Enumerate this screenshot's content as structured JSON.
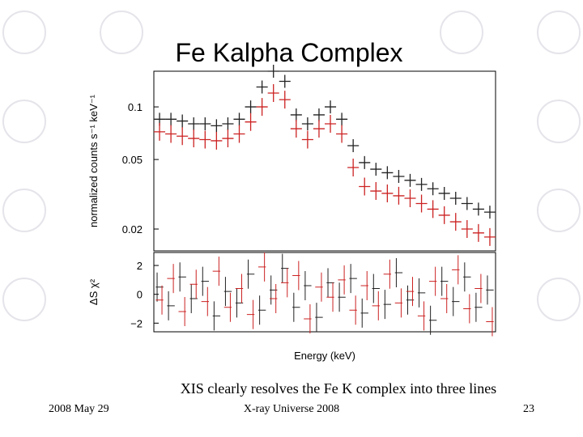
{
  "slide": {
    "title": "Fe Kalpha Complex",
    "caption": "XIS clearly resolves the Fe K complex into three lines",
    "footer_left": "2008 May 29",
    "footer_center": "X-ray Universe 2008",
    "footer_right": "23"
  },
  "chart_data": [
    {
      "type": "step",
      "ylabel": "normalized counts s⁻¹ keV⁻¹",
      "ylog": true,
      "categories": [
        null,
        null,
        null,
        null,
        null,
        null,
        null,
        null,
        null,
        null,
        null,
        null,
        null,
        null,
        null,
        null,
        null,
        null,
        null,
        null,
        null,
        null,
        null,
        null,
        null,
        null,
        null,
        null,
        null,
        null
      ],
      "ylim": [
        0.015,
        0.16
      ],
      "yticks": [
        0.02,
        0.05,
        0.1
      ],
      "series": [
        {
          "color": "#222222",
          "values": [
            0.085,
            0.085,
            0.083,
            0.08,
            0.08,
            0.078,
            0.08,
            0.085,
            0.1,
            0.13,
            0.16,
            0.14,
            0.09,
            0.08,
            0.09,
            0.1,
            0.085,
            0.06,
            0.048,
            0.044,
            0.042,
            0.04,
            0.038,
            0.036,
            0.034,
            0.032,
            0.03,
            0.028,
            0.026,
            0.025
          ]
        },
        {
          "color": "#cc2222",
          "values": [
            0.072,
            0.07,
            0.068,
            0.066,
            0.065,
            0.064,
            0.066,
            0.07,
            0.082,
            0.1,
            0.12,
            0.11,
            0.075,
            0.065,
            0.075,
            0.08,
            0.07,
            0.045,
            0.035,
            0.033,
            0.032,
            0.031,
            0.03,
            0.028,
            0.026,
            0.024,
            0.022,
            0.02,
            0.019,
            0.018
          ]
        }
      ]
    },
    {
      "type": "residual",
      "ylabel": "ΔS χ²",
      "xlabel": "Energy (keV)",
      "categories": [
        null,
        null,
        null,
        null,
        null,
        null,
        null,
        null,
        null,
        null,
        null,
        null,
        null,
        null,
        null,
        null,
        null,
        null,
        null,
        null,
        null,
        null,
        null,
        null,
        null,
        null,
        null,
        null,
        null,
        null
      ],
      "ylim": [
        -2.6,
        2.9
      ],
      "yticks": [
        2,
        0,
        {
          "value": -2,
          "label": "−2"
        }
      ],
      "series": [
        {
          "color": "#222222",
          "values": [
            0.5,
            -0.8,
            1.2,
            -0.3,
            0.9,
            -1.5,
            0.2,
            -0.6,
            1.4,
            -1.1,
            0.3,
            1.8,
            -0.9,
            0.6,
            -1.6,
            0.8,
            -0.2,
            1.1,
            -1.3,
            0.4,
            -0.7,
            1.5,
            -0.4,
            0.1,
            -1.8,
            0.9,
            -0.5,
            1.2,
            -0.9,
            0.3
          ]
        },
        {
          "color": "#cc2222",
          "values": [
            -0.4,
            1.1,
            -1.2,
            0.7,
            -0.5,
            1.6,
            -0.9,
            0.4,
            -1.4,
            1.9,
            -0.3,
            0.8,
            1.3,
            -1.7,
            0.5,
            -0.2,
            1.0,
            -1.1,
            0.6,
            -0.8,
            1.4,
            -0.6,
            0.2,
            -1.5,
            0.9,
            -0.3,
            1.7,
            -1.0,
            0.4,
            -1.9
          ]
        }
      ]
    }
  ]
}
